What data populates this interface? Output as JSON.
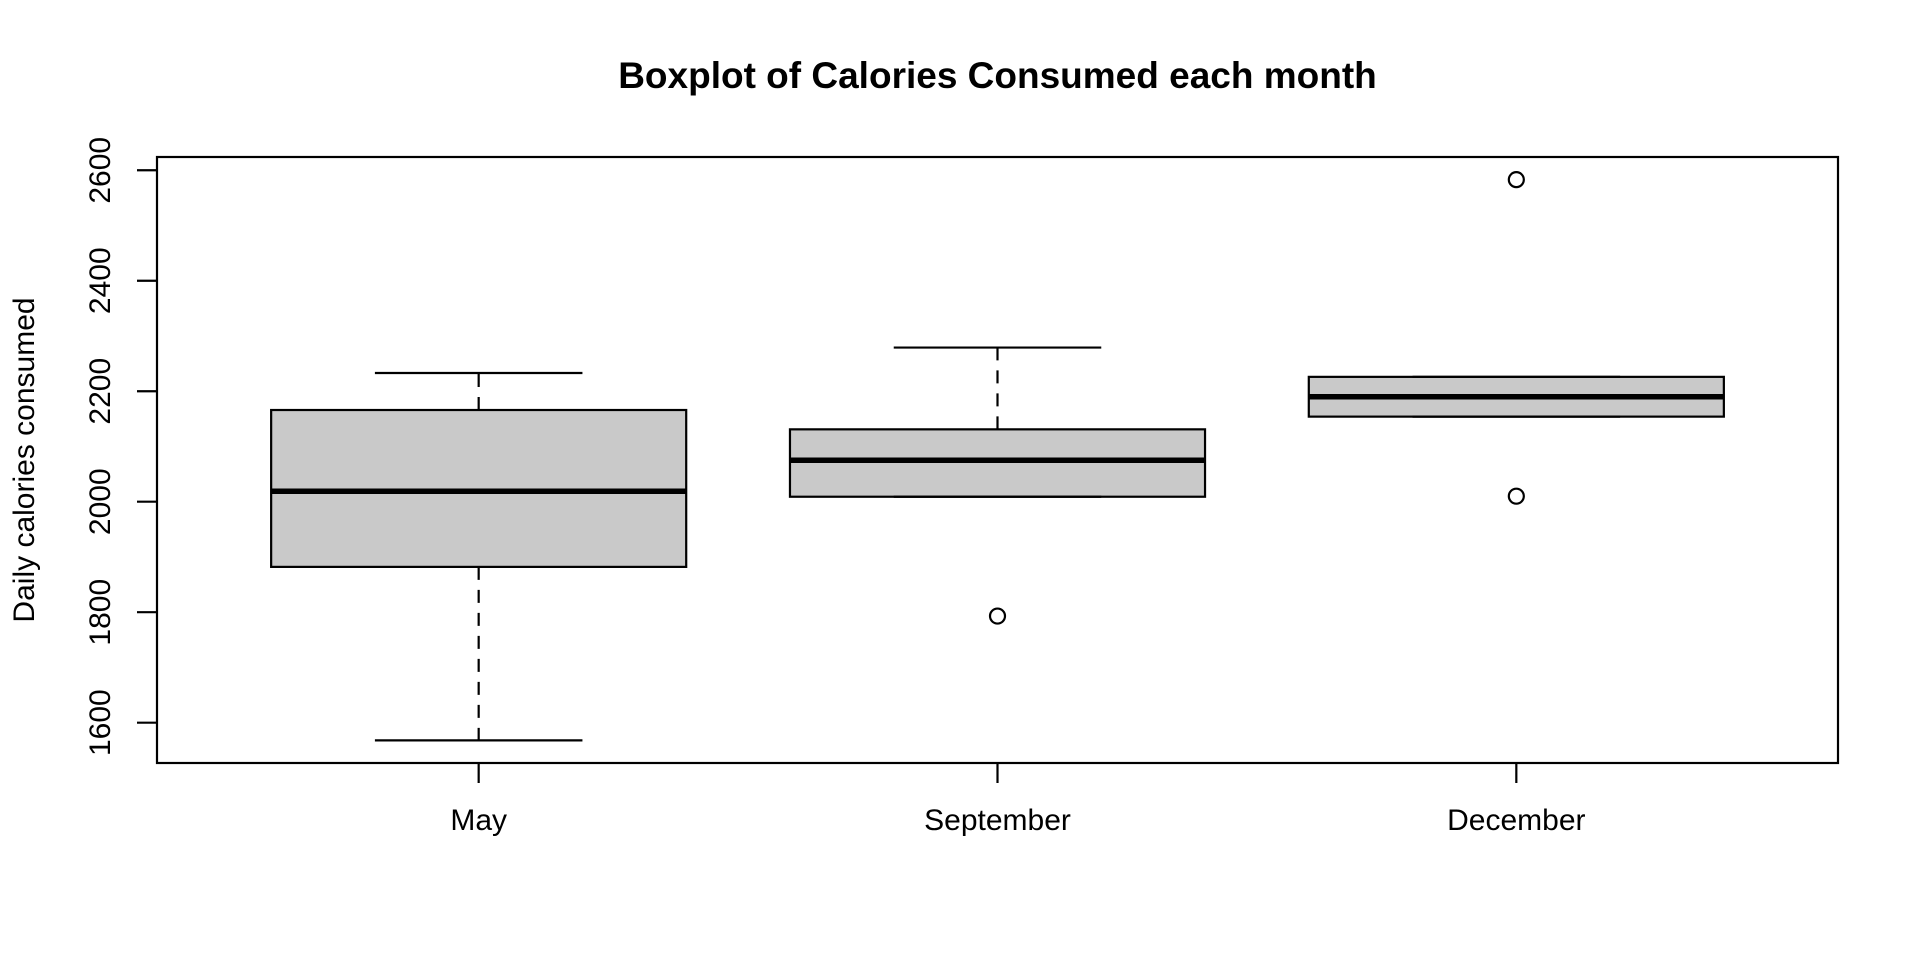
{
  "page": {
    "background": "#FFFFFF"
  },
  "chart_data": {
    "type": "boxplot",
    "title": "Boxplot of Calories Consumed each month",
    "xlabel": "",
    "ylabel": "Daily calories consumed",
    "categories": [
      "May",
      "September",
      "December"
    ],
    "y_ticks": [
      1600,
      1800,
      2000,
      2200,
      2400,
      2600
    ],
    "ylim": [
      1527,
      2624
    ],
    "xlim": [
      0.38,
      3.62
    ],
    "grid": false,
    "legend": "none",
    "boxes": [
      {
        "category": "May",
        "x": 1,
        "q1": 1882,
        "median": 2019,
        "q3": 2166,
        "whisker_low": 1568,
        "whisker_high": 2233,
        "outliers": []
      },
      {
        "category": "September",
        "x": 2,
        "q1": 2009,
        "median": 2075,
        "q3": 2131,
        "whisker_low": 2009,
        "whisker_high": 2279,
        "outliers": [
          1793
        ]
      },
      {
        "category": "December",
        "x": 3,
        "q1": 2154,
        "median": 2190,
        "q3": 2226,
        "whisker_low": 2154,
        "whisker_high": 2226,
        "outliers": [
          2010,
          2583
        ]
      }
    ],
    "style": {
      "box_fill": "#C9C9C9",
      "line_color": "#000000",
      "background": "#FFFFFF",
      "box_width_units": 0.8,
      "staple_width_units": 0.4,
      "whisker_style": "dashed"
    }
  }
}
